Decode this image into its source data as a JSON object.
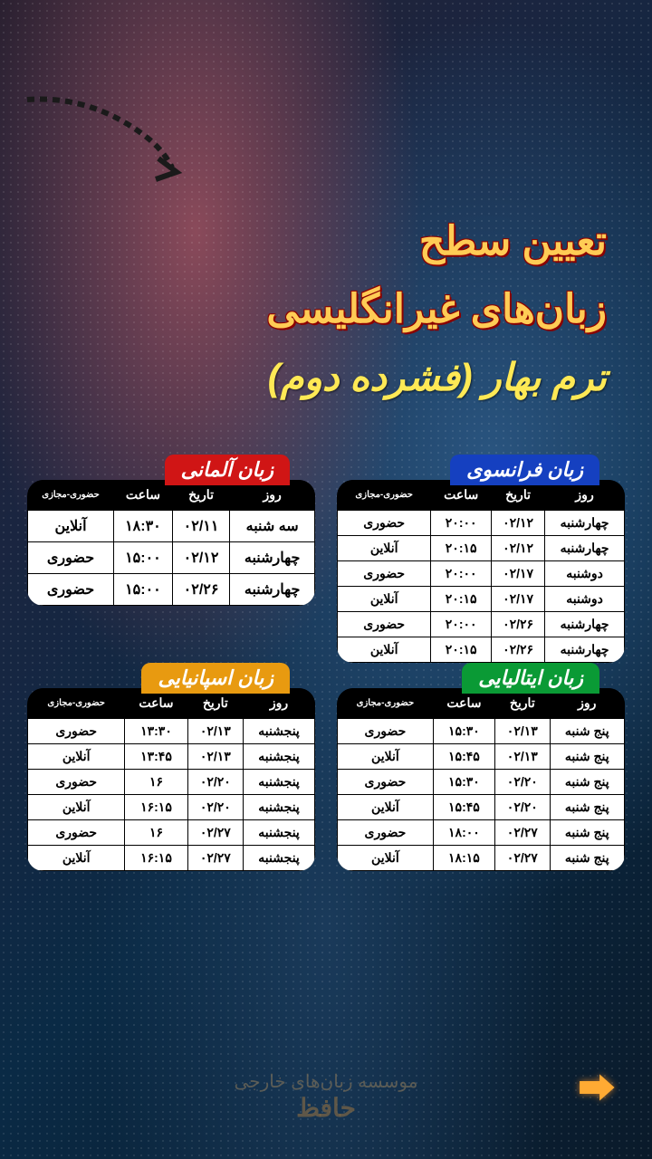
{
  "titles": {
    "line1": "تعیین سطح",
    "line2": "زبان‌های غیرانگلیسی",
    "subtitle": "ترم بهار (فشرده دوم)"
  },
  "columns": [
    "روز",
    "تاریخ",
    "ساعت",
    "حضوری-مجازی"
  ],
  "tables": {
    "french": {
      "label": "زبان فرانسوی",
      "color": "#1540c0",
      "rows": [
        [
          "چهارشنبه",
          "۰۲/۱۲",
          "۲۰:۰۰",
          "حضوری"
        ],
        [
          "چهارشنبه",
          "۰۲/۱۲",
          "۲۰:۱۵",
          "آنلاین"
        ],
        [
          "دوشنبه",
          "۰۲/۱۷",
          "۲۰:۰۰",
          "حضوری"
        ],
        [
          "دوشنبه",
          "۰۲/۱۷",
          "۲۰:۱۵",
          "آنلاین"
        ],
        [
          "چهارشنبه",
          "۰۲/۲۶",
          "۲۰:۰۰",
          "حضوری"
        ],
        [
          "چهارشنبه",
          "۰۲/۲۶",
          "۲۰:۱۵",
          "آنلاین"
        ]
      ]
    },
    "german": {
      "label": "زبان آلمانی",
      "color": "#d01515",
      "rows": [
        [
          "سه شنبه",
          "۰۲/۱۱",
          "۱۸:۳۰",
          "آنلاین"
        ],
        [
          "چهارشنبه",
          "۰۲/۱۲",
          "۱۵:۰۰",
          "حضوری"
        ],
        [
          "چهارشنبه",
          "۰۲/۲۶",
          "۱۵:۰۰",
          "حضوری"
        ]
      ]
    },
    "italian": {
      "label": "زبان ایتالیایی",
      "color": "#0a9a35",
      "rows": [
        [
          "پنج شنبه",
          "۰۲/۱۳",
          "۱۵:۳۰",
          "حضوری"
        ],
        [
          "پنج شنبه",
          "۰۲/۱۳",
          "۱۵:۴۵",
          "آنلاین"
        ],
        [
          "پنج شنبه",
          "۰۲/۲۰",
          "۱۵:۳۰",
          "حضوری"
        ],
        [
          "پنج شنبه",
          "۰۲/۲۰",
          "۱۵:۴۵",
          "آنلاین"
        ],
        [
          "پنج شنبه",
          "۰۲/۲۷",
          "۱۸:۰۰",
          "حضوری"
        ],
        [
          "پنج شنبه",
          "۰۲/۲۷",
          "۱۸:۱۵",
          "آنلاین"
        ]
      ]
    },
    "spanish": {
      "label": "زبان اسپانیایی",
      "color": "#e89a10",
      "rows": [
        [
          "پنجشنبه",
          "۰۲/۱۳",
          "۱۳:۳۰",
          "حضوری"
        ],
        [
          "پنجشنبه",
          "۰۲/۱۳",
          "۱۳:۴۵",
          "آنلاین"
        ],
        [
          "پنجشنبه",
          "۰۲/۲۰",
          "۱۶",
          "حضوری"
        ],
        [
          "پنجشنبه",
          "۰۲/۲۰",
          "۱۶:۱۵",
          "آنلاین"
        ],
        [
          "پنجشنبه",
          "۰۲/۲۷",
          "۱۶",
          "حضوری"
        ],
        [
          "پنجشنبه",
          "۰۲/۲۷",
          "۱۶:۱۵",
          "آنلاین"
        ]
      ]
    }
  },
  "footer": {
    "line1": "موسسه زبان‌های خارجی",
    "line2": "حافظ"
  }
}
